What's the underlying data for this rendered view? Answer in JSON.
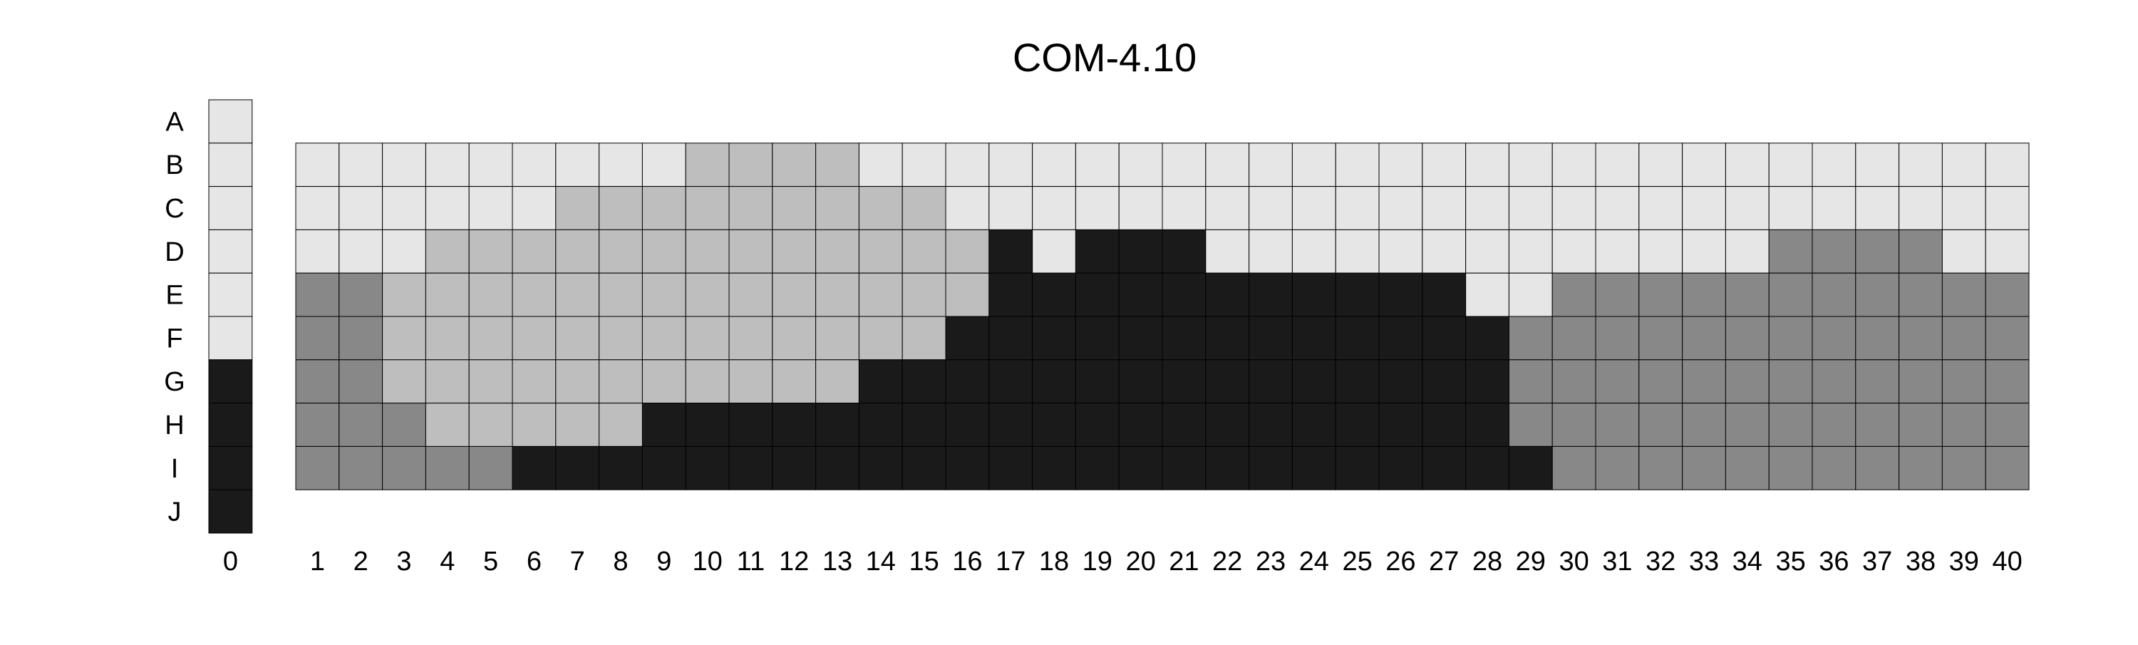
{
  "chart_data": {
    "type": "heatmap",
    "title": "COM-4.10",
    "rows": [
      "A",
      "B",
      "C",
      "D",
      "E",
      "F",
      "G",
      "H",
      "I",
      "J"
    ],
    "reference_column": {
      "label": "0",
      "values": [
        0,
        0,
        0,
        0,
        0,
        0,
        3,
        3,
        3,
        3
      ]
    },
    "columns": [
      "1",
      "2",
      "3",
      "4",
      "5",
      "6",
      "7",
      "8",
      "9",
      "10",
      "11",
      "12",
      "13",
      "14",
      "15",
      "16",
      "17",
      "18",
      "19",
      "20",
      "21",
      "22",
      "23",
      "24",
      "25",
      "26",
      "27",
      "28",
      "29",
      "30",
      "31",
      "32",
      "33",
      "34",
      "35",
      "36",
      "37",
      "38",
      "39",
      "40"
    ],
    "grid_rows": [
      "B",
      "C",
      "D",
      "E",
      "F",
      "G",
      "H",
      "I"
    ],
    "grid_values": [
      [
        0,
        0,
        0,
        0,
        0,
        0,
        0,
        0,
        0,
        1,
        1,
        1,
        1,
        0,
        0,
        0,
        0,
        0,
        0,
        0,
        0,
        0,
        0,
        0,
        0,
        0,
        0,
        0,
        0,
        0,
        0,
        0,
        0,
        0,
        0,
        0,
        0,
        0,
        0,
        0
      ],
      [
        0,
        0,
        0,
        0,
        0,
        0,
        1,
        1,
        1,
        1,
        1,
        1,
        1,
        1,
        1,
        0,
        0,
        0,
        0,
        0,
        0,
        0,
        0,
        0,
        0,
        0,
        0,
        0,
        0,
        0,
        0,
        0,
        0,
        0,
        0,
        0,
        0,
        0,
        0,
        0
      ],
      [
        0,
        0,
        0,
        1,
        1,
        1,
        1,
        1,
        1,
        1,
        1,
        1,
        1,
        1,
        1,
        1,
        3,
        0,
        3,
        3,
        3,
        0,
        0,
        0,
        0,
        0,
        0,
        0,
        0,
        0,
        0,
        0,
        0,
        0,
        2,
        2,
        2,
        2,
        0,
        0
      ],
      [
        2,
        2,
        1,
        1,
        1,
        1,
        1,
        1,
        1,
        1,
        1,
        1,
        1,
        1,
        1,
        1,
        3,
        3,
        3,
        3,
        3,
        3,
        3,
        3,
        3,
        3,
        3,
        0,
        0,
        2,
        2,
        2,
        2,
        2,
        2,
        2,
        2,
        2,
        2,
        2
      ],
      [
        2,
        2,
        1,
        1,
        1,
        1,
        1,
        1,
        1,
        1,
        1,
        1,
        1,
        1,
        1,
        3,
        3,
        3,
        3,
        3,
        3,
        3,
        3,
        3,
        3,
        3,
        3,
        3,
        2,
        2,
        2,
        2,
        2,
        2,
        2,
        2,
        2,
        2,
        2,
        2
      ],
      [
        2,
        2,
        1,
        1,
        1,
        1,
        1,
        1,
        1,
        1,
        1,
        1,
        1,
        3,
        3,
        3,
        3,
        3,
        3,
        3,
        3,
        3,
        3,
        3,
        3,
        3,
        3,
        3,
        2,
        2,
        2,
        2,
        2,
        2,
        2,
        2,
        2,
        2,
        2,
        2
      ],
      [
        2,
        2,
        2,
        1,
        1,
        1,
        1,
        1,
        3,
        3,
        3,
        3,
        3,
        3,
        3,
        3,
        3,
        3,
        3,
        3,
        3,
        3,
        3,
        3,
        3,
        3,
        3,
        3,
        2,
        2,
        2,
        2,
        2,
        2,
        2,
        2,
        2,
        2,
        2,
        2
      ],
      [
        2,
        2,
        2,
        2,
        2,
        3,
        3,
        3,
        3,
        3,
        3,
        3,
        3,
        3,
        3,
        3,
        3,
        3,
        3,
        3,
        3,
        3,
        3,
        3,
        3,
        3,
        3,
        3,
        3,
        2,
        2,
        2,
        2,
        2,
        2,
        2,
        2,
        2,
        2,
        2
      ]
    ],
    "level_colors": [
      "#e6e6e6",
      "#bebebe",
      "#888888",
      "#1a1a1a"
    ],
    "grid": true,
    "legend": "none"
  }
}
